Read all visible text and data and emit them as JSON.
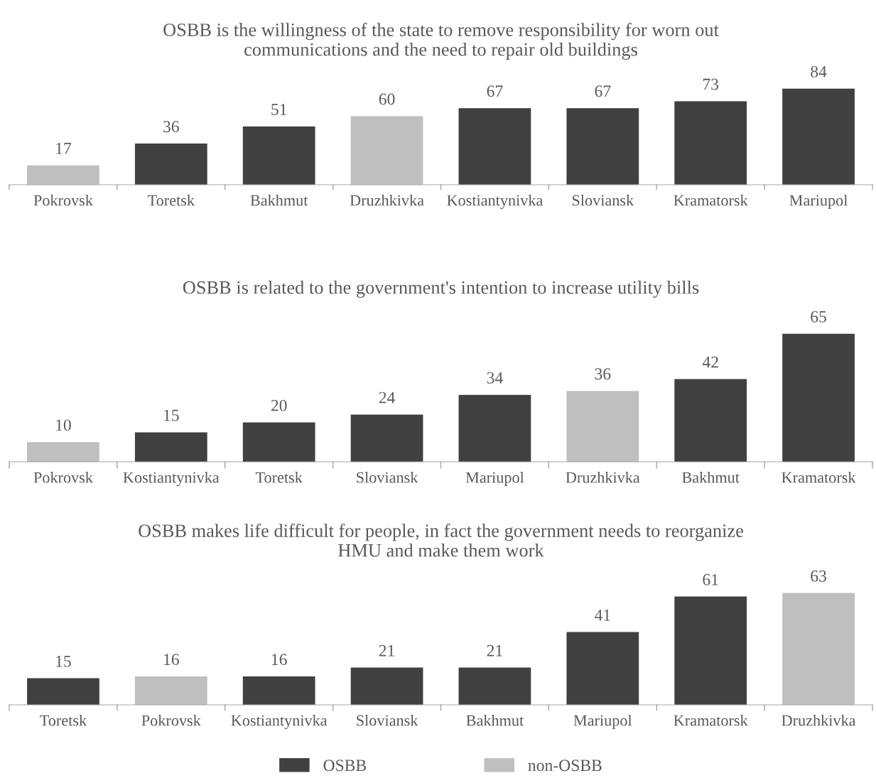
{
  "chart_data": [
    {
      "type": "bar",
      "title": "OSBB is the willingness of the state to remove responsibility for worn out\ncommunications and the need to repair old buildings",
      "categories": [
        "Pokrovsk",
        "Toretsk",
        "Bakhmut",
        "Druzhkivka",
        "Kostiantynivka",
        "Sloviansk",
        "Kramatorsk",
        "Mariupol"
      ],
      "series": [
        {
          "color": "#404040",
          "values": [
            null,
            36,
            51,
            null,
            67,
            67,
            73,
            84
          ]
        },
        {
          "color": "#bfbfbf",
          "values": [
            17,
            null,
            null,
            60,
            null,
            null,
            null,
            null
          ]
        }
      ],
      "data_labels": true,
      "tick_labels": "x"
    },
    {
      "type": "bar",
      "title": "OSBB is related to the government's intention to increase utility bills",
      "categories": [
        "Pokrovsk",
        "Kostiantynivka",
        "Toretsk",
        "Sloviansk",
        "Mariupol",
        "Druzhkivka",
        "Bakhmut",
        "Kramatorsk"
      ],
      "series": [
        {
          "color": "#404040",
          "values": [
            null,
            15,
            20,
            24,
            34,
            null,
            42,
            65
          ]
        },
        {
          "color": "#bfbfbf",
          "values": [
            10,
            null,
            null,
            null,
            null,
            36,
            null,
            null
          ]
        }
      ],
      "data_labels": true,
      "tick_labels": "x"
    },
    {
      "type": "bar",
      "title": "OSBB makes life difficult for people, in fact the government needs to reorganize\nHMU and make them work",
      "categories": [
        "Toretsk",
        "Pokrovsk",
        "Kostiantynivka",
        "Sloviansk",
        "Bakhmut",
        "Mariupol",
        "Kramatorsk",
        "Druzhkivka"
      ],
      "series": [
        {
          "name": "OSBB",
          "color": "#404040",
          "values": [
            15,
            null,
            16,
            21,
            21,
            41,
            61,
            null
          ]
        },
        {
          "name": "non-OSBB",
          "color": "#bfbfbf",
          "values": [
            null,
            16,
            null,
            null,
            null,
            null,
            null,
            63
          ]
        }
      ],
      "data_labels": true,
      "legend": "bottom",
      "tick_labels": "x"
    }
  ]
}
